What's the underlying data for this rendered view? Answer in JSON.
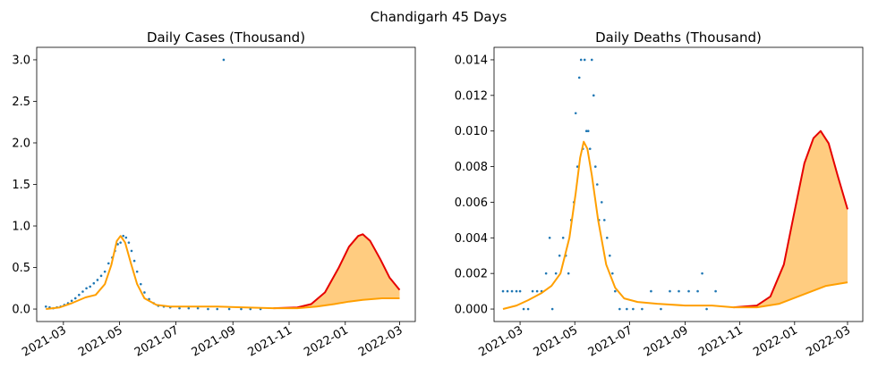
{
  "suptitle": "Chandigarh 45 Days",
  "colors": {
    "scatter": "#1f77b4",
    "fit": "#ff9f00",
    "forecast_upper": "#e60000",
    "band": "#ffcc80"
  },
  "x_ticks": [
    "2021-03",
    "2021-05",
    "2021-07",
    "2021-09",
    "2021-11",
    "2022-01",
    "2022-03"
  ],
  "chart_data": [
    {
      "type": "scatter",
      "title": "Daily Cases (Thousand)",
      "ylim": [
        -0.15,
        3.15
      ],
      "yticks": [
        0.0,
        0.5,
        1.0,
        1.5,
        2.0,
        2.5,
        3.0
      ],
      "ytick_labels": [
        "0.0",
        "0.5",
        "1.0",
        "1.5",
        "2.0",
        "2.5",
        "3.0"
      ],
      "xlim": [
        "2021-01-31",
        "2022-03-18"
      ],
      "points": [
        [
          "2021-02-10",
          0.03
        ],
        [
          "2021-02-14",
          0.02
        ],
        [
          "2021-02-18",
          0.01
        ],
        [
          "2021-02-22",
          0.02
        ],
        [
          "2021-02-26",
          0.03
        ],
        [
          "2021-03-02",
          0.05
        ],
        [
          "2021-03-06",
          0.07
        ],
        [
          "2021-03-10",
          0.1
        ],
        [
          "2021-03-14",
          0.13
        ],
        [
          "2021-03-18",
          0.17
        ],
        [
          "2021-03-22",
          0.21
        ],
        [
          "2021-03-26",
          0.25
        ],
        [
          "2021-03-30",
          0.27
        ],
        [
          "2021-04-03",
          0.31
        ],
        [
          "2021-04-07",
          0.35
        ],
        [
          "2021-04-11",
          0.4
        ],
        [
          "2021-04-15",
          0.45
        ],
        [
          "2021-04-19",
          0.55
        ],
        [
          "2021-04-23",
          0.62
        ],
        [
          "2021-04-26",
          0.7
        ],
        [
          "2021-04-29",
          0.78
        ],
        [
          "2021-05-02",
          0.8
        ],
        [
          "2021-05-05",
          0.88
        ],
        [
          "2021-05-08",
          0.86
        ],
        [
          "2021-05-11",
          0.8
        ],
        [
          "2021-05-14",
          0.7
        ],
        [
          "2021-05-17",
          0.58
        ],
        [
          "2021-05-20",
          0.45
        ],
        [
          "2021-05-24",
          0.3
        ],
        [
          "2021-05-28",
          0.2
        ],
        [
          "2021-06-02",
          0.12
        ],
        [
          "2021-06-07",
          0.07
        ],
        [
          "2021-06-12",
          0.04
        ],
        [
          "2021-06-18",
          0.03
        ],
        [
          "2021-06-25",
          0.02
        ],
        [
          "2021-07-05",
          0.01
        ],
        [
          "2021-07-15",
          0.01
        ],
        [
          "2021-07-25",
          0.01
        ],
        [
          "2021-08-05",
          0.0
        ],
        [
          "2021-08-15",
          0.0
        ],
        [
          "2021-08-22",
          3.0
        ],
        [
          "2021-08-28",
          0.0
        ],
        [
          "2021-09-10",
          0.0
        ],
        [
          "2021-09-20",
          0.0
        ],
        [
          "2021-10-01",
          0.0
        ]
      ],
      "fit": [
        [
          "2021-02-10",
          0.0
        ],
        [
          "2021-02-25",
          0.02
        ],
        [
          "2021-03-10",
          0.07
        ],
        [
          "2021-03-25",
          0.14
        ],
        [
          "2021-04-05",
          0.17
        ],
        [
          "2021-04-15",
          0.3
        ],
        [
          "2021-04-22",
          0.53
        ],
        [
          "2021-04-28",
          0.82
        ],
        [
          "2021-05-02",
          0.88
        ],
        [
          "2021-05-07",
          0.8
        ],
        [
          "2021-05-13",
          0.56
        ],
        [
          "2021-05-20",
          0.3
        ],
        [
          "2021-05-28",
          0.13
        ],
        [
          "2021-06-10",
          0.05
        ],
        [
          "2021-06-25",
          0.03
        ],
        [
          "2021-07-15",
          0.03
        ],
        [
          "2021-08-15",
          0.03
        ],
        [
          "2021-09-15",
          0.02
        ],
        [
          "2021-10-15",
          0.01
        ],
        [
          "2021-11-10",
          0.01
        ],
        [
          "2021-12-01",
          0.03
        ],
        [
          "2021-12-20",
          0.06
        ],
        [
          "2022-01-05",
          0.09
        ],
        [
          "2022-01-20",
          0.11
        ],
        [
          "2022-02-10",
          0.13
        ],
        [
          "2022-03-01",
          0.13
        ]
      ],
      "forecast_upper": [
        [
          "2021-10-15",
          0.01
        ],
        [
          "2021-11-10",
          0.02
        ],
        [
          "2021-11-25",
          0.06
        ],
        [
          "2021-12-10",
          0.2
        ],
        [
          "2021-12-25",
          0.5
        ],
        [
          "2022-01-05",
          0.75
        ],
        [
          "2022-01-15",
          0.88
        ],
        [
          "2022-01-20",
          0.9
        ],
        [
          "2022-01-28",
          0.82
        ],
        [
          "2022-02-08",
          0.6
        ],
        [
          "2022-02-18",
          0.38
        ],
        [
          "2022-03-01",
          0.23
        ]
      ]
    },
    {
      "type": "scatter",
      "title": "Daily Deaths (Thousand)",
      "ylim": [
        -0.0007,
        0.0147
      ],
      "yticks": [
        0.0,
        0.002,
        0.004,
        0.006,
        0.008,
        0.01,
        0.012,
        0.014
      ],
      "ytick_labels": [
        "0.000",
        "0.002",
        "0.004",
        "0.006",
        "0.008",
        "0.010",
        "0.012",
        "0.014"
      ],
      "xlim": [
        "2021-01-31",
        "2022-03-18"
      ],
      "points": [
        [
          "2021-02-10",
          0.001
        ],
        [
          "2021-02-15",
          0.001
        ],
        [
          "2021-02-20",
          0.001
        ],
        [
          "2021-02-25",
          0.001
        ],
        [
          "2021-03-01",
          0.001
        ],
        [
          "2021-03-05",
          0.0
        ],
        [
          "2021-03-10",
          0.0
        ],
        [
          "2021-03-15",
          0.001
        ],
        [
          "2021-03-20",
          0.001
        ],
        [
          "2021-03-25",
          0.001
        ],
        [
          "2021-03-30",
          0.002
        ],
        [
          "2021-04-03",
          0.004
        ],
        [
          "2021-04-06",
          0.0
        ],
        [
          "2021-04-10",
          0.002
        ],
        [
          "2021-04-14",
          0.003
        ],
        [
          "2021-04-18",
          0.004
        ],
        [
          "2021-04-21",
          0.003
        ],
        [
          "2021-04-24",
          0.002
        ],
        [
          "2021-04-27",
          0.005
        ],
        [
          "2021-04-30",
          0.006
        ],
        [
          "2021-05-02",
          0.011
        ],
        [
          "2021-05-04",
          0.008
        ],
        [
          "2021-05-06",
          0.013
        ],
        [
          "2021-05-08",
          0.014
        ],
        [
          "2021-05-10",
          0.009
        ],
        [
          "2021-05-12",
          0.014
        ],
        [
          "2021-05-14",
          0.01
        ],
        [
          "2021-05-16",
          0.01
        ],
        [
          "2021-05-18",
          0.009
        ],
        [
          "2021-05-20",
          0.014
        ],
        [
          "2021-05-22",
          0.012
        ],
        [
          "2021-05-24",
          0.008
        ],
        [
          "2021-05-26",
          0.007
        ],
        [
          "2021-05-28",
          0.005
        ],
        [
          "2021-05-31",
          0.006
        ],
        [
          "2021-06-03",
          0.005
        ],
        [
          "2021-06-06",
          0.004
        ],
        [
          "2021-06-09",
          0.003
        ],
        [
          "2021-06-12",
          0.002
        ],
        [
          "2021-06-15",
          0.001
        ],
        [
          "2021-06-20",
          0.0
        ],
        [
          "2021-06-28",
          0.0
        ],
        [
          "2021-07-05",
          0.0
        ],
        [
          "2021-07-15",
          0.0
        ],
        [
          "2021-07-25",
          0.001
        ],
        [
          "2021-08-05",
          0.0
        ],
        [
          "2021-08-15",
          0.001
        ],
        [
          "2021-08-25",
          0.001
        ],
        [
          "2021-09-05",
          0.001
        ],
        [
          "2021-09-15",
          0.001
        ],
        [
          "2021-09-20",
          0.002
        ],
        [
          "2021-09-25",
          0.0
        ],
        [
          "2021-10-05",
          0.001
        ]
      ],
      "fit": [
        [
          "2021-02-10",
          0.0
        ],
        [
          "2021-02-25",
          0.0002
        ],
        [
          "2021-03-10",
          0.0005
        ],
        [
          "2021-03-25",
          0.0009
        ],
        [
          "2021-04-05",
          0.0013
        ],
        [
          "2021-04-15",
          0.002
        ],
        [
          "2021-04-25",
          0.004
        ],
        [
          "2021-05-02",
          0.0065
        ],
        [
          "2021-05-07",
          0.0085
        ],
        [
          "2021-05-11",
          0.0094
        ],
        [
          "2021-05-15",
          0.009
        ],
        [
          "2021-05-20",
          0.0075
        ],
        [
          "2021-05-27",
          0.005
        ],
        [
          "2021-06-05",
          0.0025
        ],
        [
          "2021-06-15",
          0.0012
        ],
        [
          "2021-06-25",
          0.0006
        ],
        [
          "2021-07-10",
          0.0004
        ],
        [
          "2021-08-01",
          0.0003
        ],
        [
          "2021-09-01",
          0.0002
        ],
        [
          "2021-10-01",
          0.0002
        ],
        [
          "2021-10-25",
          0.0001
        ],
        [
          "2021-11-20",
          0.0001
        ],
        [
          "2021-12-15",
          0.0003
        ],
        [
          "2022-01-10",
          0.0008
        ],
        [
          "2022-02-05",
          0.0013
        ],
        [
          "2022-03-01",
          0.0015
        ]
      ],
      "forecast_upper": [
        [
          "2021-10-25",
          0.0001
        ],
        [
          "2021-11-20",
          0.0002
        ],
        [
          "2021-12-05",
          0.0007
        ],
        [
          "2021-12-20",
          0.0025
        ],
        [
          "2022-01-01",
          0.0055
        ],
        [
          "2022-01-12",
          0.0082
        ],
        [
          "2022-01-22",
          0.0096
        ],
        [
          "2022-01-30",
          0.01
        ],
        [
          "2022-02-08",
          0.0093
        ],
        [
          "2022-02-18",
          0.0075
        ],
        [
          "2022-03-01",
          0.0056
        ]
      ]
    }
  ]
}
